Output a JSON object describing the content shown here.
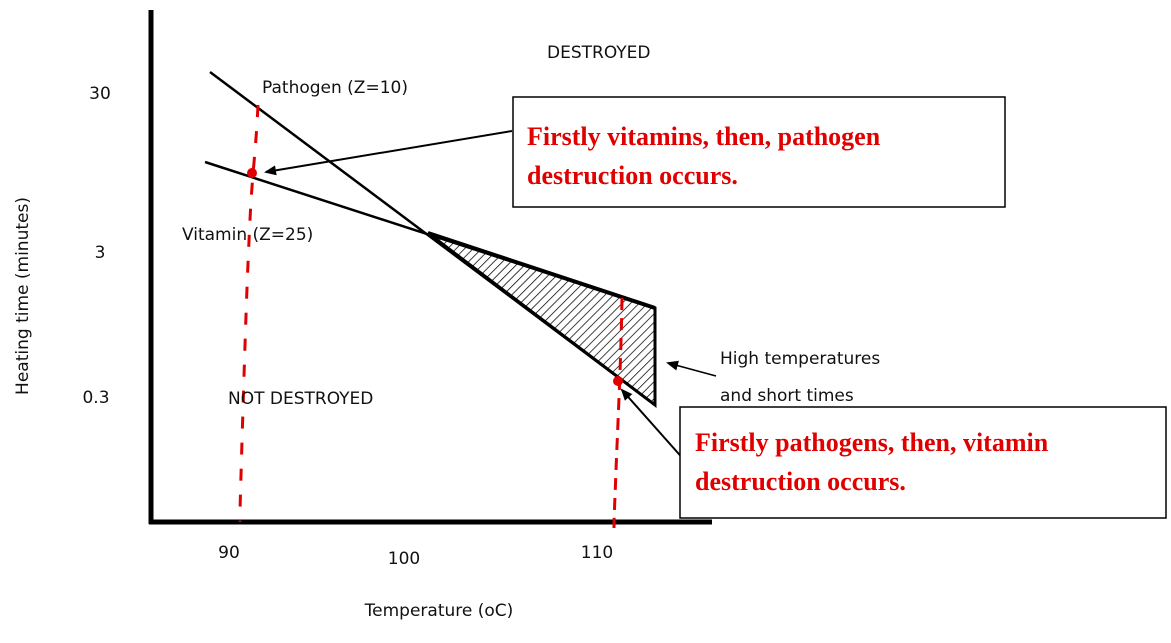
{
  "axes": {
    "x_label": "Temperature (oC)",
    "y_label": "Heating time (minutes)",
    "x_ticks": [
      "90",
      "100",
      "110"
    ],
    "y_ticks": [
      "30",
      "3",
      "0.3"
    ]
  },
  "regions": {
    "upper": "DESTROYED",
    "lower": "NOT DESTROYED"
  },
  "lines": {
    "pathogen": "Pathogen (Z=10)",
    "vitamin": "Vitamin (Z=25)"
  },
  "note": [
    "High temperatures",
    "and short times"
  ],
  "callouts": [
    {
      "lines": [
        "Firstly vitamins, then, pathogen",
        "destruction occurs."
      ]
    },
    {
      "lines": [
        "Firstly pathogens, then, vitamin",
        "destruction occurs."
      ]
    }
  ]
}
